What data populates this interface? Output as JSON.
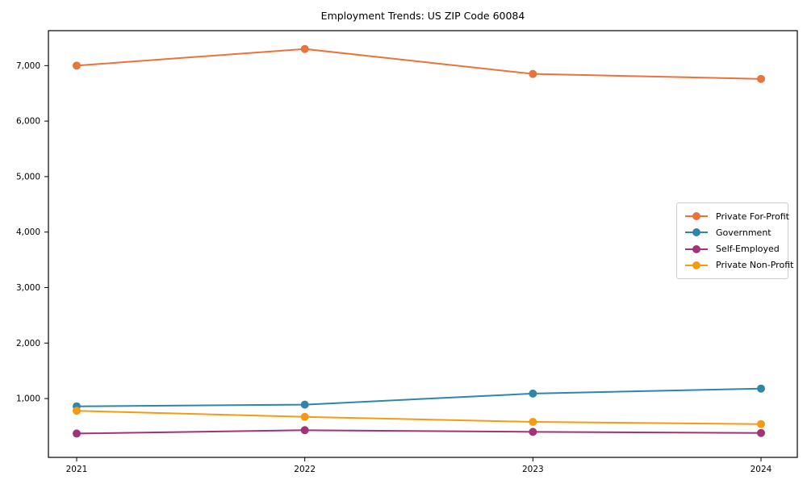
{
  "chart_data": {
    "type": "line",
    "title": "Employment Trends: US ZIP Code 60084",
    "xlabel": "",
    "ylabel": "",
    "categories": [
      "2021",
      "2022",
      "2023",
      "2024"
    ],
    "series": [
      {
        "name": "Private For-Profit",
        "color": "#E8743B",
        "values": [
          7000,
          7300,
          6850,
          6760
        ]
      },
      {
        "name": "Government",
        "color": "#2E86AB",
        "values": [
          860,
          890,
          1090,
          1180
        ]
      },
      {
        "name": "Self-Employed",
        "color": "#A13479",
        "values": [
          370,
          430,
          400,
          380
        ]
      },
      {
        "name": "Private Non-Profit",
        "color": "#F39C12",
        "values": [
          780,
          670,
          580,
          540
        ]
      }
    ],
    "yticks": [
      1000,
      2000,
      3000,
      4000,
      5000,
      6000,
      7000
    ],
    "ytick_labels": [
      "1,000",
      "2,000",
      "3,000",
      "4,000",
      "5,000",
      "6,000",
      "7,000"
    ],
    "ylim": [
      -60,
      7630
    ],
    "grid": false,
    "legend_position": "center-right",
    "marker": "circle",
    "axis_color": "#000000",
    "legend_border_color": "#cccccc",
    "background_color": "#ffffff"
  }
}
